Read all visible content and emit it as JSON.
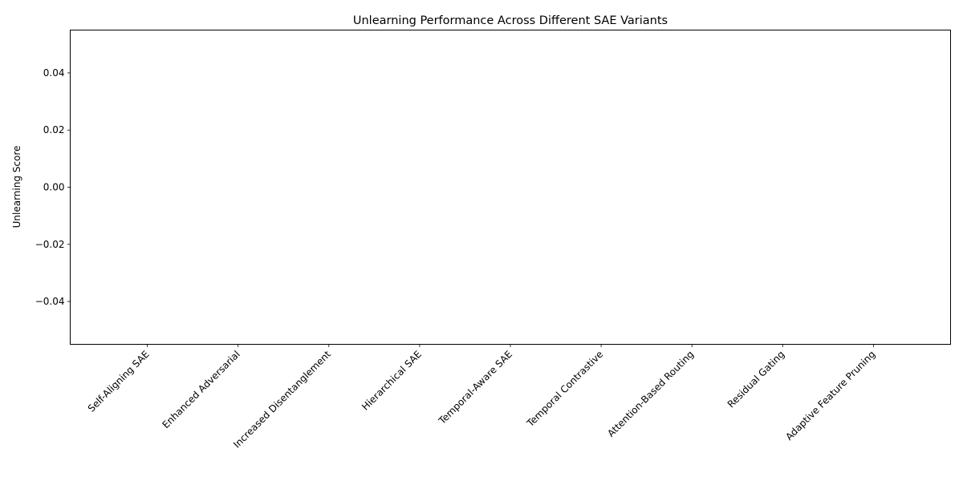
{
  "chart_data": {
    "type": "bar",
    "title": "Unlearning Performance Across Different SAE Variants",
    "xlabel": "",
    "ylabel": "Unlearning Score",
    "categories": [
      "Self-Aligning SAE",
      "Enhanced Adversarial",
      "Increased Disentanglement",
      "Hierarchical SAE",
      "Temporal-Aware SAE",
      "Temporal Contrastive",
      "Attention-Based Routing",
      "Residual Gating",
      "Adaptive Feature Pruning"
    ],
    "values": [
      0,
      0,
      0,
      0,
      0,
      0,
      0,
      0,
      0
    ],
    "ylim": [
      -0.055,
      0.055
    ],
    "yticks": [
      -0.04,
      -0.02,
      0.0,
      0.02,
      0.04
    ],
    "ytick_labels": [
      "−0.04",
      "−0.02",
      "0.00",
      "0.02",
      "0.04"
    ],
    "grid": false,
    "legend": "none",
    "bar_color": "#1f77b4"
  }
}
